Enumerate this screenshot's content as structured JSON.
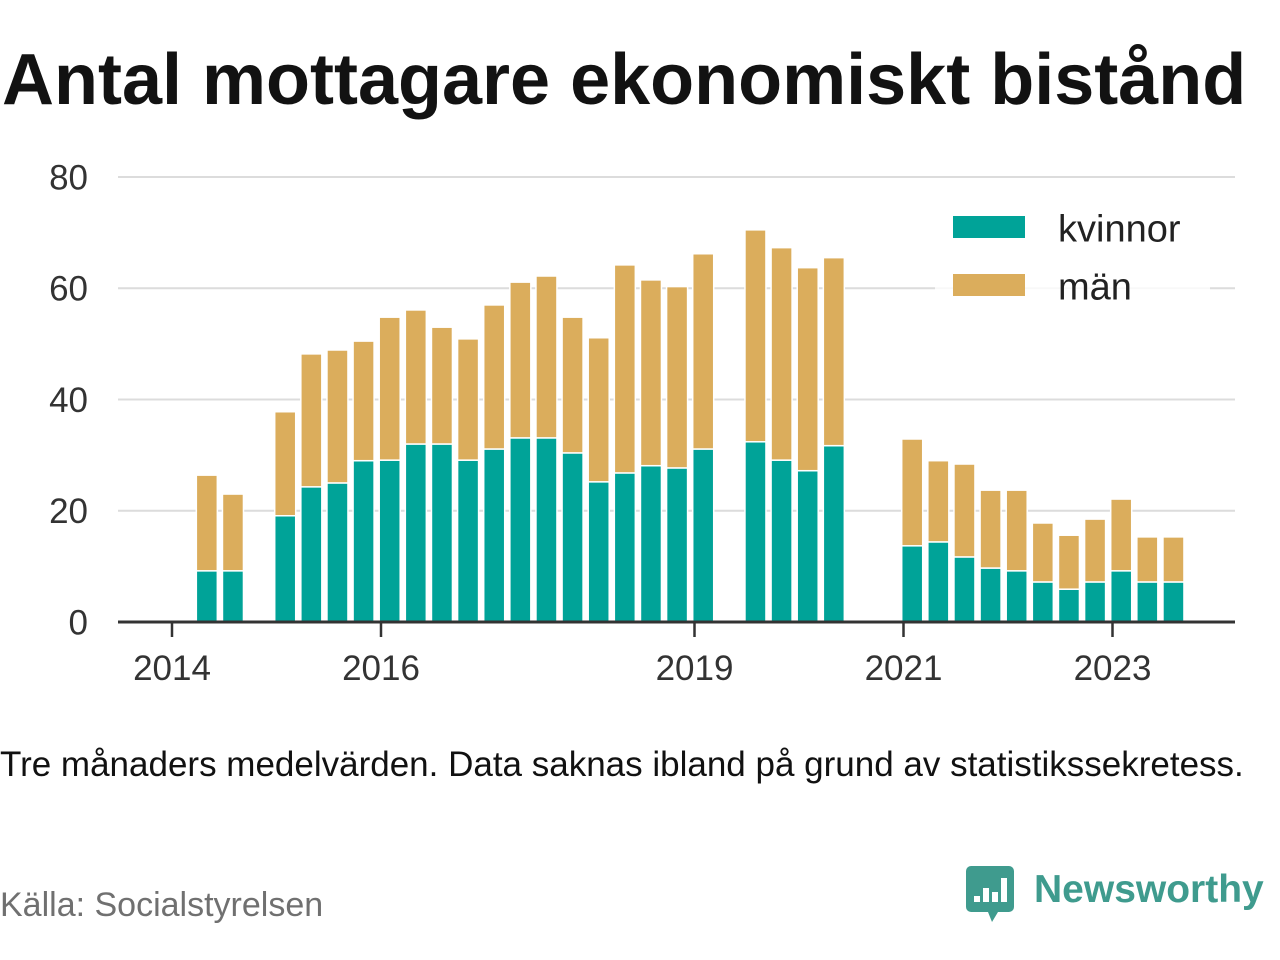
{
  "note": "Tre månaders medelvärden. Data saknas ibland på grund av statistikssekretess.",
  "source": "Källa: Socialstyrelsen",
  "brand": {
    "name": "Newsworthy",
    "icon": "newsworthy-logo-icon",
    "color": "#3f9b8e"
  },
  "chart_data": {
    "type": "bar",
    "stacked": true,
    "title": "Antal mottagare ekonomiskt bistånd",
    "x": [
      "2014-05",
      "2014-08",
      "2015-02",
      "2015-05",
      "2015-08",
      "2015-11",
      "2016-02",
      "2016-05",
      "2016-08",
      "2016-11",
      "2017-02",
      "2017-05",
      "2017-08",
      "2017-11",
      "2018-02",
      "2018-05",
      "2018-08",
      "2018-11",
      "2019-02",
      "2019-08",
      "2019-11",
      "2020-02",
      "2020-05",
      "2021-02",
      "2021-05",
      "2021-08",
      "2021-11",
      "2022-02",
      "2022-05",
      "2022-08",
      "2022-11",
      "2023-02",
      "2023-05",
      "2023-08"
    ],
    "x_ticks": [
      "2014",
      "2016",
      "2019",
      "2021",
      "2023"
    ],
    "y_ticks": [
      0,
      20,
      40,
      60,
      80
    ],
    "ylim": [
      0,
      80
    ],
    "grid": true,
    "legend_position": "top-right",
    "series": [
      {
        "name": "kvinnor",
        "color": "#00a398",
        "values": [
          9.2,
          9.2,
          19.1,
          24.3,
          25.0,
          29.0,
          29.1,
          32.0,
          32.0,
          29.1,
          31.1,
          33.1,
          33.1,
          30.4,
          25.2,
          26.8,
          28.1,
          27.7,
          31.1,
          32.4,
          29.1,
          27.2,
          31.7,
          13.7,
          14.4,
          11.7,
          9.7,
          9.2,
          7.2,
          5.9,
          7.2,
          9.2,
          7.2,
          7.2
        ]
      },
      {
        "name": "män",
        "color": "#dbad5c",
        "values": [
          17.2,
          13.8,
          18.7,
          23.9,
          23.9,
          21.5,
          25.7,
          24.1,
          21.0,
          21.8,
          25.9,
          28.0,
          29.1,
          24.4,
          25.9,
          37.4,
          33.4,
          32.6,
          35.1,
          38.1,
          38.2,
          36.5,
          33.8,
          19.2,
          14.6,
          16.7,
          14.0,
          14.5,
          10.6,
          9.7,
          11.3,
          12.9,
          8.1,
          8.1
        ]
      }
    ]
  }
}
